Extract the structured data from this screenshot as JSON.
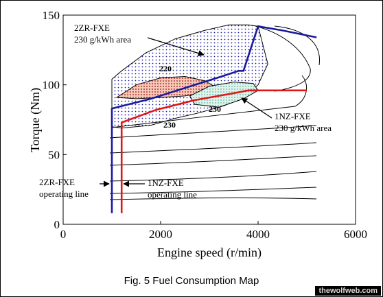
{
  "chart_data": {
    "type": "line",
    "title": "",
    "xlabel": "Engine speed (r/min)",
    "ylabel": "Torque (Nm)",
    "xlim": [
      0,
      6000
    ],
    "ylim": [
      0,
      150
    ],
    "x_ticks": [
      "0",
      "2000",
      "4000",
      "6000"
    ],
    "y_ticks": [
      "0",
      "50",
      "100",
      "150"
    ],
    "grid": false,
    "series": [
      {
        "name": "2ZR-FXE operating line",
        "color": "#1a1aa0",
        "x": [
          1000,
          1000,
          1000,
          1800,
          2700,
          3250,
          3600,
          3700,
          4000,
          4500,
          5200
        ],
        "y": [
          8,
          60,
          83,
          90,
          100,
          106,
          110,
          110,
          142,
          139,
          134
        ]
      },
      {
        "name": "1NZ-FXE operating line",
        "color": "#e01515",
        "x": [
          1200,
          1200,
          1200,
          1900,
          2700,
          3500,
          3800,
          4300,
          5000
        ],
        "y": [
          8,
          60,
          73,
          82,
          89,
          94,
          96,
          96,
          96
        ]
      }
    ],
    "regions": [
      {
        "name": "2ZR-FXE 230 g/kWh area",
        "color": "#1a1aa0",
        "pattern": "dots",
        "x": [
          1000,
          1000,
          1200,
          1700,
          2300,
          2900,
          3400,
          3800,
          4000,
          4200,
          4000,
          3700,
          3300,
          2800,
          2300,
          1800,
          1200,
          1000
        ],
        "y": [
          70,
          104,
          110,
          123,
          133,
          139,
          143,
          143,
          142,
          115,
          100,
          91,
          85,
          80,
          76,
          71,
          69,
          70
        ]
      },
      {
        "name": "2ZR-FXE 220 g/kWh area",
        "color": "#a01010",
        "pattern": "dots",
        "x": [
          1100,
          1500,
          2000,
          2500,
          2900,
          3100,
          3000,
          2500,
          2000,
          1500,
          1100
        ],
        "y": [
          91,
          100,
          105,
          106,
          103,
          99,
          95,
          92,
          91,
          90,
          91
        ]
      },
      {
        "name": "1NZ-FXE 230 g/kWh area",
        "color": "#2a9a7a",
        "pattern": "dots",
        "x": [
          2600,
          3000,
          3500,
          3900,
          4000,
          3700,
          3200,
          2700,
          2600
        ],
        "y": [
          92,
          99,
          102,
          101,
          96,
          90,
          84,
          86,
          92
        ]
      }
    ],
    "contour_values": [
      "220",
      "230",
      "230"
    ],
    "annotations": [
      {
        "text": "2ZR-FXE",
        "text2": "230 g/kWh area"
      },
      {
        "text": "1NZ-FXE",
        "text2": "230 g/kWh area"
      },
      {
        "text": "2ZR-FXE",
        "text2": "operating line"
      },
      {
        "text": "1NZ-FXE",
        "text2": "operating line"
      }
    ]
  },
  "caption": "Fig. 5 Fuel Consumption Map",
  "watermark": "thewolfweb.com"
}
